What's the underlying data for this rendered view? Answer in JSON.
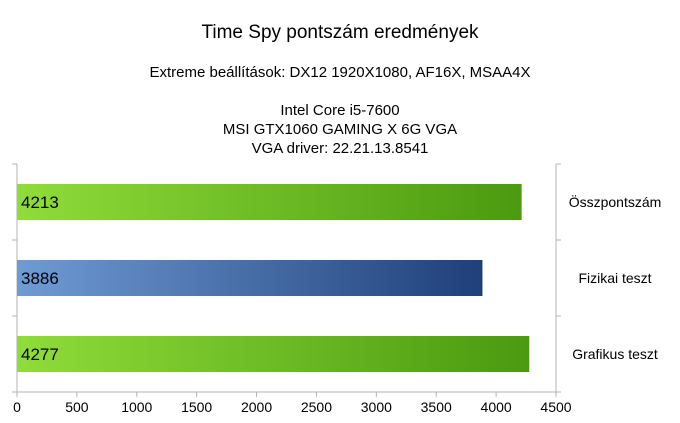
{
  "chart_data": {
    "type": "bar",
    "orientation": "horizontal",
    "title": "Time Spy pontszám eredmények",
    "subtitle": "Extreme beállítások: DX12 1920X1080, AF16X, MSAA4X",
    "system_lines": [
      "Intel Core i5-7600",
      "MSI GTX1060 GAMING X 6G VGA",
      "VGA driver: 22.21.13.8541"
    ],
    "categories": [
      "Összpontszám",
      "Fizikai teszt",
      "Grafikus teszt"
    ],
    "values": [
      4213,
      3886,
      4277
    ],
    "data_labels": [
      "4213",
      "3886",
      "4277"
    ],
    "bar_colors": [
      "#6cc52a",
      "#3f6fad",
      "#6cc52a"
    ],
    "xlim": [
      0,
      4500
    ],
    "xticks": [
      "0",
      "500",
      "1000",
      "1500",
      "2000",
      "2500",
      "3000",
      "3500",
      "4000",
      "4500"
    ],
    "grid": false,
    "category_labels_side": "right"
  }
}
